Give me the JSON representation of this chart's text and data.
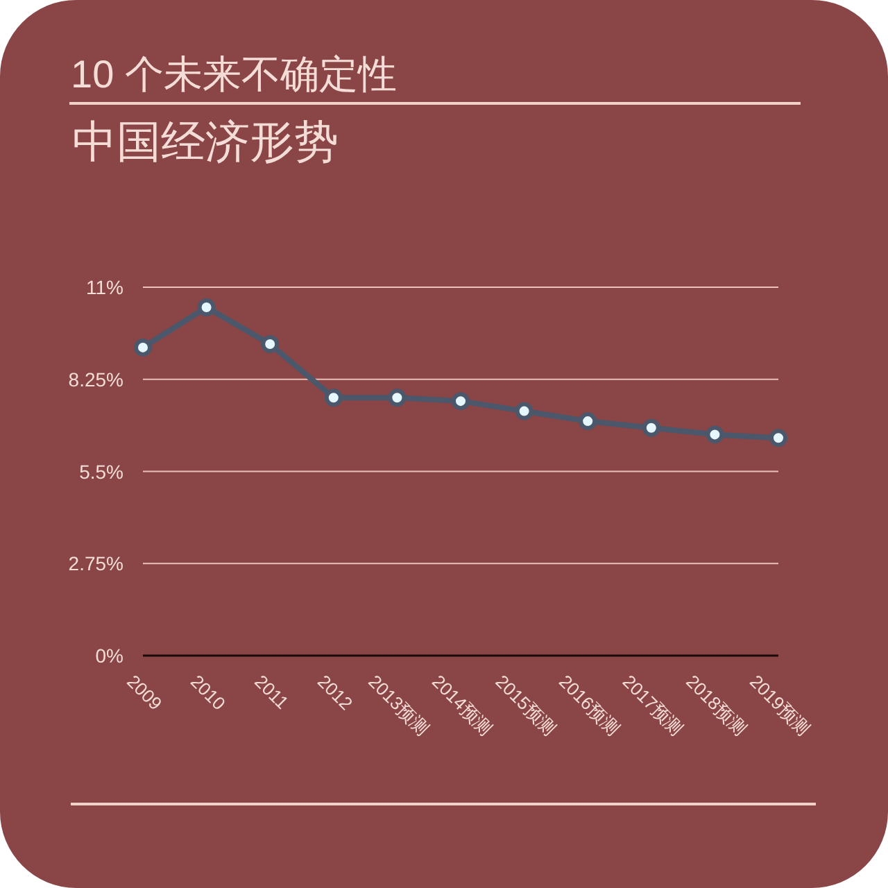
{
  "chart_data": {
    "type": "line",
    "title": "10 个未来不确定性",
    "subtitle": "中国经济形势",
    "categories": [
      "2009",
      "2010",
      "2011",
      "2012",
      "2013预测",
      "2014预测",
      "2015预测",
      "2016预测",
      "2017预测",
      "2018预测",
      "2019预测"
    ],
    "series": [
      {
        "color": "#4b576b",
        "values": [
          9.2,
          10.4,
          9.3,
          7.7,
          7.7,
          7.6,
          7.3,
          7.0,
          6.8,
          6.6,
          6.5
        ]
      }
    ],
    "ylim": [
      0,
      11
    ],
    "yticks": [
      {
        "value": 0,
        "label": "0%"
      },
      {
        "value": 2.75,
        "label": "2.75%"
      },
      {
        "value": 5.5,
        "label": "5.5%"
      },
      {
        "value": 8.25,
        "label": "8.25%"
      },
      {
        "value": 11,
        "label": "11%"
      }
    ],
    "grid": "y",
    "marker": "circle",
    "line_style": "solid"
  }
}
